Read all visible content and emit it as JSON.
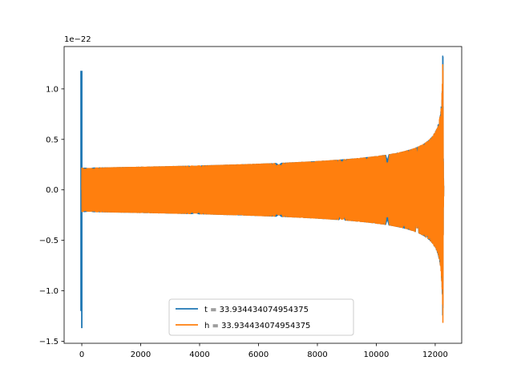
{
  "chart_data": {
    "type": "line",
    "title": "",
    "xlabel": "",
    "ylabel": "",
    "y_offset_label": "1e−22",
    "xlim": [
      -600,
      12900
    ],
    "ylim": [
      -1.52,
      1.42
    ],
    "x_ticks": [
      0,
      2000,
      4000,
      6000,
      8000,
      10000,
      12000
    ],
    "x_tick_labels": [
      "0",
      "2000",
      "4000",
      "6000",
      "8000",
      "10000",
      "12000"
    ],
    "y_ticks": [
      -1.5,
      -1.0,
      -0.5,
      0.0,
      0.5,
      1.0
    ],
    "y_tick_labels": [
      "−1.5",
      "−1.0",
      "−0.5",
      "0.0",
      "0.5",
      "1.0"
    ],
    "grid": false,
    "legend_position": "lower-center",
    "series": [
      {
        "name": "t = 33.934434074954375",
        "color": "#1f77b4",
        "description_values": {
          "x_range": [
            0,
            12290
          ],
          "y_min": -1.37,
          "y_max": 1.18,
          "spike_near_x": 0,
          "merger_near_x": 12270
        }
      },
      {
        "name": "h = 33.934434074954375",
        "color": "#ff7f0e",
        "description_values": {
          "x_range": [
            0,
            12290
          ],
          "y_min": -1.38,
          "y_max": 1.31,
          "start_amplitude": 0.22,
          "merger_near_x": 12270
        }
      }
    ]
  }
}
